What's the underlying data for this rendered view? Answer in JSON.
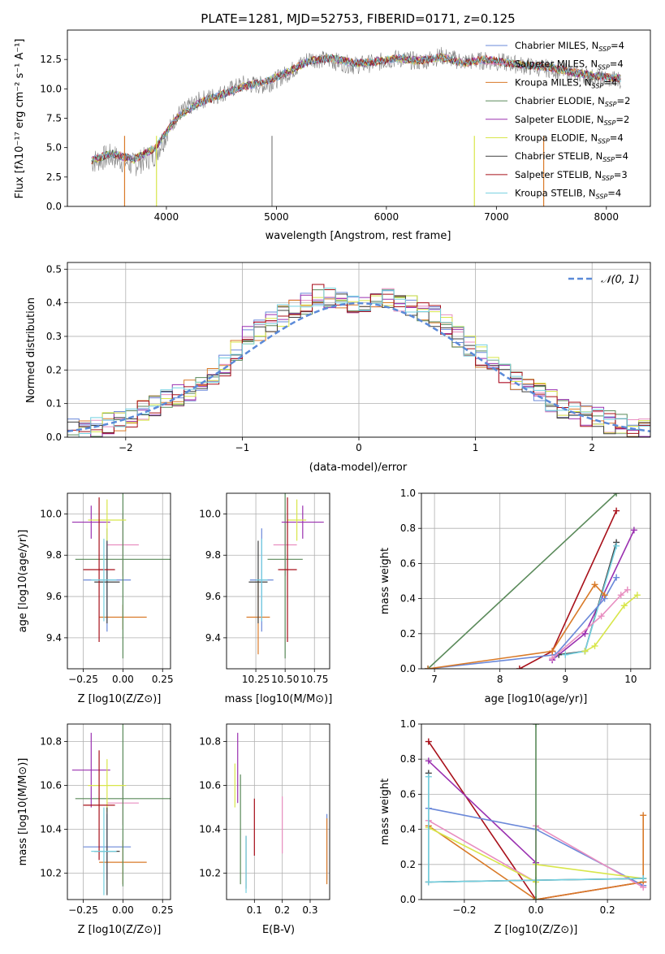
{
  "chart_data": [
    {
      "type": "line",
      "title": "PLATE=1281, MJD=52753, FIBERID=0171, z=0.125",
      "xlabel": "wavelength [Angstrom, rest frame]",
      "ylabel": "Flux [fλ10⁻¹⁷ erg cm⁻² s⁻¹ A⁻¹]",
      "xlim": [
        3100,
        8400
      ],
      "ylim": [
        0,
        15
      ],
      "xticks": [
        4000,
        5000,
        6000,
        7000,
        8000
      ],
      "yticks": [
        0.0,
        2.5,
        5.0,
        7.5,
        10.0,
        12.5
      ],
      "grid": false,
      "legend_position": "right",
      "data_series": {
        "name": "data",
        "x": [
          3320,
          3500,
          3700,
          3900,
          4100,
          4300,
          4500,
          4700,
          4900,
          5100,
          5300,
          5500,
          5700,
          5900,
          6100,
          6300,
          6500,
          6700,
          6900,
          7100,
          7300,
          7500,
          7700,
          7900,
          8100
        ],
        "y": [
          3.8,
          4.3,
          3.5,
          4.5,
          7.8,
          9.0,
          9.6,
          10.4,
          10.3,
          11.3,
          12.6,
          12.4,
          12.0,
          12.2,
          12.6,
          12.3,
          12.8,
          12.3,
          12.4,
          12.2,
          11.9,
          11.7,
          11.3,
          10.9,
          10.8
        ]
      },
      "model_x": [
        3320,
        3500,
        3700,
        3900,
        4100,
        4300,
        4500,
        4700,
        4900,
        5100,
        5300,
        5500,
        5700,
        5900,
        6100,
        6300,
        6500,
        6700,
        6900,
        7100,
        7300,
        7500,
        7700,
        7900,
        8100
      ],
      "model_y": [
        3.9,
        4.5,
        4.0,
        5.0,
        7.6,
        8.8,
        9.5,
        10.2,
        10.6,
        11.4,
        12.4,
        12.6,
        12.2,
        12.3,
        12.6,
        12.4,
        12.7,
        12.2,
        12.5,
        12.2,
        12.0,
        11.8,
        11.4,
        11.1,
        10.9
      ],
      "series": [
        {
          "name": "Chabrier MILES, N",
          "sub": "SSP",
          "suffix": "=4",
          "color": "#6a88d9"
        },
        {
          "name": "Salpeter MILES, N",
          "sub": "SSP",
          "suffix": "=4",
          "color": "#e88ec0"
        },
        {
          "name": "Kroupa MILES, N",
          "sub": "SSP",
          "suffix": "=4",
          "color": "#d97a28"
        },
        {
          "name": "Chabrier ELODIE, N",
          "sub": "SSP",
          "suffix": "=2",
          "color": "#5a8a5a"
        },
        {
          "name": "Salpeter ELODIE, N",
          "sub": "SSP",
          "suffix": "=2",
          "color": "#9a30b0"
        },
        {
          "name": "Kroupa ELODIE, N",
          "sub": "SSP",
          "suffix": "=4",
          "color": "#d8e64a"
        },
        {
          "name": "Chabrier STELIB, N",
          "sub": "SSP",
          "suffix": "=4",
          "color": "#404040"
        },
        {
          "name": "Salpeter STELIB, N",
          "sub": "SSP",
          "suffix": "=3",
          "color": "#a8101a"
        },
        {
          "name": "Kroupa STELIB, N",
          "sub": "SSP",
          "suffix": "=4",
          "color": "#74d0e0"
        }
      ]
    },
    {
      "type": "histogram",
      "xlabel": "(data-model)/error",
      "ylabel": "Normed distribution",
      "xlim": [
        -2.5,
        2.5
      ],
      "ylim": [
        0,
        0.52
      ],
      "xticks": [
        -2,
        -1,
        0,
        1,
        2
      ],
      "yticks": [
        0.0,
        0.1,
        0.2,
        0.3,
        0.4,
        0.5
      ],
      "grid": true,
      "legend": "𝒩(0, 1)",
      "legend_position": "top-right",
      "bin_width": 0.1,
      "envelope": [
        0.02,
        0.025,
        0.03,
        0.04,
        0.05,
        0.06,
        0.075,
        0.09,
        0.11,
        0.125,
        0.135,
        0.155,
        0.18,
        0.21,
        0.26,
        0.3,
        0.32,
        0.345,
        0.36,
        0.38,
        0.4,
        0.42,
        0.41,
        0.4,
        0.39,
        0.4,
        0.41,
        0.41,
        0.4,
        0.39,
        0.38,
        0.36,
        0.33,
        0.3,
        0.27,
        0.24,
        0.21,
        0.19,
        0.17,
        0.15,
        0.13,
        0.11,
        0.09,
        0.075,
        0.065,
        0.055,
        0.045,
        0.035,
        0.025,
        0.02
      ]
    },
    {
      "type": "errorbar",
      "xlabel": "Z [log10(Z/Z⊙)]",
      "ylabel": "age [log10(age/yr)]",
      "xlim": [
        -0.35,
        0.3
      ],
      "ylim": [
        9.25,
        10.1
      ],
      "xticks": [
        -0.25,
        0.0,
        0.25
      ],
      "yticks": [
        9.4,
        9.6,
        9.8,
        10.0
      ],
      "points": [
        {
          "x": -0.1,
          "xerr": 0.15,
          "y": 9.68,
          "yerr": 0.25,
          "color": "#6a88d9"
        },
        {
          "x": 0.0,
          "xerr": 0.1,
          "y": 9.85,
          "yerr": 0.15,
          "color": "#e88ec0"
        },
        {
          "x": 0.0,
          "xerr": 0.15,
          "y": 9.5,
          "yerr": 0.06,
          "color": "#d97a28"
        },
        {
          "x": 0.0,
          "xerr": 0.3,
          "y": 9.78,
          "yerr": 0.48,
          "color": "#5a8a5a"
        },
        {
          "x": -0.2,
          "xerr": 0.12,
          "y": 9.96,
          "yerr": 0.08,
          "color": "#9a30b0"
        },
        {
          "x": -0.1,
          "xerr": 0.12,
          "y": 9.97,
          "yerr": 0.1,
          "color": "#d8e64a"
        },
        {
          "x": -0.1,
          "xerr": 0.08,
          "y": 9.67,
          "yerr": 0.2,
          "color": "#404040"
        },
        {
          "x": -0.15,
          "xerr": 0.1,
          "y": 9.73,
          "yerr": 0.35,
          "color": "#a8101a"
        },
        {
          "x": -0.12,
          "xerr": 0.08,
          "y": 9.68,
          "yerr": 0.2,
          "color": "#74d0e0"
        }
      ]
    },
    {
      "type": "errorbar",
      "xlabel": "mass [log10(M/M⊙)]",
      "ylabel": "",
      "xlim": [
        10.0,
        10.88
      ],
      "ylim": [
        9.25,
        10.1
      ],
      "xticks": [
        10.25,
        10.5,
        10.75
      ],
      "yticks": [
        9.4,
        9.6,
        9.8,
        10.0
      ],
      "points": [
        {
          "x": 10.3,
          "xerr": 0.1,
          "y": 9.68,
          "yerr": 0.25,
          "color": "#6a88d9"
        },
        {
          "x": 10.5,
          "xerr": 0.1,
          "y": 9.85,
          "yerr": 0.15,
          "color": "#e88ec0"
        },
        {
          "x": 10.27,
          "xerr": 0.1,
          "y": 9.5,
          "yerr": 0.18,
          "color": "#d97a28"
        },
        {
          "x": 10.5,
          "xerr": 0.15,
          "y": 9.78,
          "yerr": 0.48,
          "color": "#5a8a5a"
        },
        {
          "x": 10.65,
          "xerr": 0.18,
          "y": 9.96,
          "yerr": 0.08,
          "color": "#9a30b0"
        },
        {
          "x": 10.6,
          "xerr": 0.08,
          "y": 9.97,
          "yerr": 0.1,
          "color": "#d8e64a"
        },
        {
          "x": 10.27,
          "xerr": 0.08,
          "y": 9.67,
          "yerr": 0.2,
          "color": "#404040"
        },
        {
          "x": 10.52,
          "xerr": 0.08,
          "y": 9.73,
          "yerr": 0.35,
          "color": "#a8101a"
        },
        {
          "x": 10.3,
          "xerr": 0.05,
          "y": 9.68,
          "yerr": 0.2,
          "color": "#74d0e0"
        }
      ]
    },
    {
      "type": "line",
      "xlabel": "age [log10(age/yr)]",
      "ylabel": "mass weight",
      "xlim": [
        6.8,
        10.3
      ],
      "ylim": [
        0,
        1.0
      ],
      "xticks": [
        7,
        8,
        9,
        10
      ],
      "yticks": [
        0.0,
        0.2,
        0.4,
        0.6,
        0.8,
        1.0
      ],
      "grid": true,
      "series": [
        {
          "color": "#5a8a5a",
          "x": [
            6.9,
            9.78
          ],
          "y": [
            0.0,
            1.0
          ]
        },
        {
          "color": "#a8101a",
          "x": [
            8.3,
            8.8,
            9.78
          ],
          "y": [
            0.0,
            0.1,
            0.9
          ]
        },
        {
          "color": "#9a30b0",
          "x": [
            8.8,
            9.3,
            10.05
          ],
          "y": [
            0.05,
            0.2,
            0.79
          ]
        },
        {
          "color": "#404040",
          "x": [
            8.9,
            9.3,
            9.78
          ],
          "y": [
            0.08,
            0.1,
            0.72
          ]
        },
        {
          "color": "#74d0e0",
          "x": [
            9.0,
            9.3,
            9.78
          ],
          "y": [
            0.08,
            0.1,
            0.7
          ]
        },
        {
          "color": "#6a88d9",
          "x": [
            6.9,
            8.85,
            9.6,
            9.78
          ],
          "y": [
            0.0,
            0.08,
            0.4,
            0.52
          ]
        },
        {
          "color": "#d97a28",
          "x": [
            6.9,
            8.8,
            9.45,
            9.6
          ],
          "y": [
            0.0,
            0.1,
            0.48,
            0.42
          ]
        },
        {
          "color": "#e88ec0",
          "x": [
            8.8,
            9.55,
            9.85,
            9.95
          ],
          "y": [
            0.06,
            0.3,
            0.42,
            0.45
          ]
        },
        {
          "color": "#d8e64a",
          "x": [
            9.3,
            9.45,
            9.9,
            10.1
          ],
          "y": [
            0.1,
            0.13,
            0.36,
            0.42
          ]
        }
      ]
    },
    {
      "type": "errorbar",
      "xlabel": "Z [log10(Z/Z⊙)]",
      "ylabel": "mass [log10(M/M⊙)]",
      "xlim": [
        -0.35,
        0.3
      ],
      "ylim": [
        10.08,
        10.88
      ],
      "xticks": [
        -0.25,
        0.0,
        0.25
      ],
      "yticks": [
        10.2,
        10.4,
        10.6,
        10.8
      ],
      "points": [
        {
          "x": -0.1,
          "xerr": 0.15,
          "y": 10.32,
          "yerr": 0.15,
          "color": "#6a88d9"
        },
        {
          "x": 0.0,
          "xerr": 0.1,
          "y": 10.52,
          "yerr": 0.1,
          "color": "#e88ec0"
        },
        {
          "x": 0.0,
          "xerr": 0.15,
          "y": 10.25,
          "yerr": 0.1,
          "color": "#d97a28"
        },
        {
          "x": 0.0,
          "xerr": 0.3,
          "y": 10.54,
          "yerr": 0.4,
          "color": "#5a8a5a"
        },
        {
          "x": -0.2,
          "xerr": 0.12,
          "y": 10.67,
          "yerr": 0.17,
          "color": "#9a30b0"
        },
        {
          "x": -0.1,
          "xerr": 0.12,
          "y": 10.6,
          "yerr": 0.12,
          "color": "#d8e64a"
        },
        {
          "x": -0.1,
          "xerr": 0.08,
          "y": 10.3,
          "yerr": 0.2,
          "color": "#404040"
        },
        {
          "x": -0.15,
          "xerr": 0.1,
          "y": 10.51,
          "yerr": 0.25,
          "color": "#a8101a"
        },
        {
          "x": -0.12,
          "xerr": 0.08,
          "y": 10.3,
          "yerr": 0.2,
          "color": "#74d0e0"
        }
      ]
    },
    {
      "type": "errorbar",
      "xlabel": "E(B-V)",
      "ylabel": "",
      "xlim": [
        0.0,
        0.37
      ],
      "ylim": [
        10.08,
        10.88
      ],
      "xticks": [
        0.1,
        0.2,
        0.3
      ],
      "yticks": [
        10.2,
        10.4,
        10.6,
        10.8
      ],
      "points": [
        {
          "x": 0.36,
          "y": 10.32,
          "yerr": 0.15,
          "color": "#6a88d9"
        },
        {
          "x": 0.2,
          "y": 10.42,
          "yerr": 0.13,
          "color": "#e88ec0"
        },
        {
          "x": 0.36,
          "y": 10.3,
          "yerr": 0.15,
          "color": "#d97a28"
        },
        {
          "x": 0.05,
          "y": 10.4,
          "yerr": 0.25,
          "color": "#5a8a5a"
        },
        {
          "x": 0.04,
          "y": 10.68,
          "yerr": 0.16,
          "color": "#9a30b0"
        },
        {
          "x": 0.03,
          "y": 10.6,
          "yerr": 0.1,
          "color": "#d8e64a"
        },
        {
          "x": 0.07,
          "y": 10.25,
          "yerr": 0.12,
          "color": "#404040"
        },
        {
          "x": 0.1,
          "y": 10.41,
          "yerr": 0.13,
          "color": "#a8101a"
        },
        {
          "x": 0.07,
          "y": 10.24,
          "yerr": 0.13,
          "color": "#74d0e0"
        }
      ]
    },
    {
      "type": "line",
      "xlabel": "Z [log10(Z/Z⊙)]",
      "ylabel": "mass weight",
      "xlim": [
        -0.32,
        0.32
      ],
      "ylim": [
        0,
        1.0
      ],
      "xticks": [
        -0.2,
        0.0,
        0.2
      ],
      "yticks": [
        0.0,
        0.2,
        0.4,
        0.6,
        0.8,
        1.0
      ],
      "grid": true,
      "series": [
        {
          "color": "#a8101a",
          "x": [
            -0.3,
            0.0,
            0.3
          ],
          "y": [
            0.9,
            0.0,
            0.1
          ]
        },
        {
          "color": "#9a30b0",
          "x": [
            -0.3,
            0.0
          ],
          "y": [
            0.79,
            0.21
          ]
        },
        {
          "color": "#6a88d9",
          "x": [
            -0.3,
            0.0,
            0.3
          ],
          "y": [
            0.52,
            0.4,
            0.08
          ]
        },
        {
          "color": "#d97a28",
          "x": [
            -0.3,
            0.0,
            0.3,
            0.3
          ],
          "y": [
            0.42,
            0.0,
            0.1,
            0.48
          ]
        },
        {
          "color": "#e88ec0",
          "x": [
            -0.3,
            0.0,
            0.0,
            0.3
          ],
          "y": [
            0.45,
            0.1,
            0.42,
            0.07
          ]
        },
        {
          "color": "#d8e64a",
          "x": [
            -0.3,
            0.0,
            0.0,
            0.3
          ],
          "y": [
            0.41,
            0.1,
            0.2,
            0.12
          ]
        },
        {
          "color": "#404040",
          "x": [
            -0.3,
            -0.3,
            0.0,
            0.3
          ],
          "y": [
            0.72,
            0.1,
            0.11,
            0.12
          ]
        },
        {
          "color": "#74d0e0",
          "x": [
            -0.3,
            -0.3,
            0.0,
            0.3
          ],
          "y": [
            0.7,
            0.1,
            0.11,
            0.12
          ]
        },
        {
          "color": "#5a8a5a",
          "x": [
            0.0,
            0.0
          ],
          "y": [
            0.0,
            1.0
          ]
        }
      ]
    }
  ]
}
